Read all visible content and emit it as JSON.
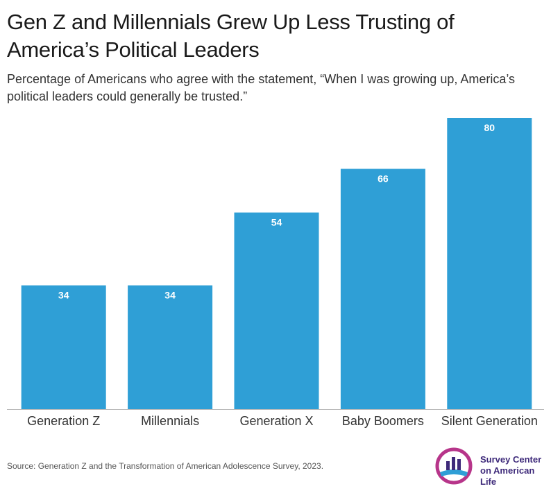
{
  "title_line1": "Gen Z and Millennials Grew Up Less Trusting of",
  "title_line2": "America’s Political Leaders",
  "subtitle_line1": "Percentage of Americans who agree with the statement, “When I was growing up, America’s",
  "subtitle_line2": "political leaders could generally be trusted.”",
  "source": "Source: Generation Z and the Transformation of American Adolescence Survey, 2023.",
  "logo": {
    "line1": "Survey Center",
    "line2": "on American Life",
    "icon": "bar-chart-circle-logo"
  },
  "colors": {
    "bar": "#2f9fd6",
    "label": "#ffffff",
    "axis": "#bbbbbb"
  },
  "chart_data": {
    "type": "bar",
    "categories": [
      "Generation Z",
      "Millennials",
      "Generation X",
      "Baby Boomers",
      "Silent Generation"
    ],
    "values": [
      34,
      34,
      54,
      66,
      80
    ],
    "xlabel": "",
    "ylabel": "",
    "ylim": [
      0,
      80
    ],
    "grid": false
  }
}
